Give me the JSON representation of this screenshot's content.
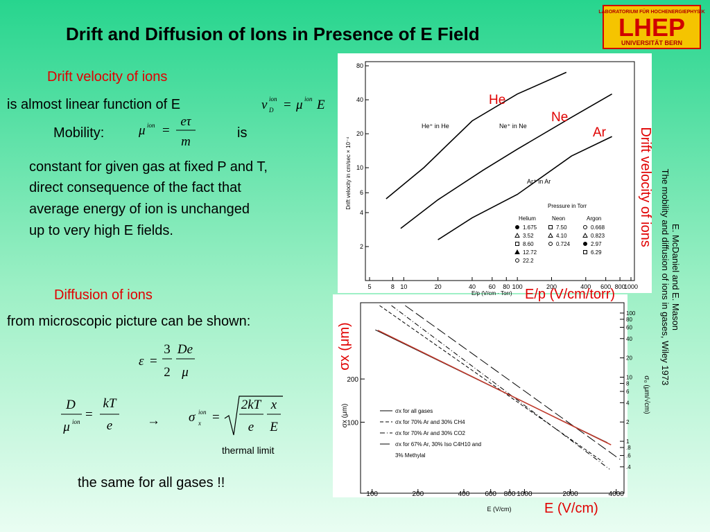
{
  "slide": {
    "title": "Drift and Diffusion of Ions in Presence of E Field",
    "logo": {
      "top": "LABORATORIUM FÜR HOCHENERGIEPHYSIK",
      "main": "LHEP",
      "bottom": "UNIVERSITÄT BERN"
    },
    "drift_heading": "Drift velocity of ions",
    "drift_text": "is almost linear function of E",
    "mobility_label": "Mobility:",
    "is": "is",
    "paragraph": [
      "constant for given gas at fixed P and T,",
      "direct consequence of the fact that",
      "average energy of ion is unchanged",
      "up to very high E fields."
    ],
    "diffusion_heading": "Diffusion of ions",
    "diffusion_text": "from microscopic picture can be shown:",
    "thermal": "thermal limit",
    "same": "the same for all gases !!",
    "vertical_label": "Drift velocity of ions",
    "citation": [
      "E. McDaniel and E. Mason",
      "The mobility and diffusion of ions in gases, Wiley 1973"
    ],
    "ep_label": "E/p (V/cm/torr)",
    "e_label": "E (V/cm)",
    "sigma_label": "σx (μm)"
  },
  "formulas": {
    "drift": [
      "v",
      "ion",
      "D",
      "=",
      "μ",
      "ion",
      "E"
    ],
    "mobility": [
      "μ",
      "ion",
      "=",
      "eτ",
      "m"
    ],
    "energy": [
      "ε",
      "=",
      "3",
      "2",
      "De",
      "μ"
    ],
    "ratio": [
      "D",
      "μ",
      "ion",
      "=",
      "kT",
      "e"
    ],
    "arrow": "→",
    "sigma": [
      "σ",
      "ion",
      "x",
      "=",
      "2kT",
      "e",
      "x",
      "E"
    ]
  },
  "chart_data": [
    {
      "type": "line",
      "xlabel": "E/p (V/cm · Torr)",
      "ylabel": "Drift velocity in cm/sec × 10⁻⁴",
      "log_x": true,
      "log_y": true,
      "xlim": [
        5,
        1000
      ],
      "ylim": [
        1,
        80
      ],
      "xticks": [
        5,
        8,
        10,
        20,
        40,
        60,
        80,
        100,
        200,
        400,
        600,
        800,
        1000
      ],
      "yticks": [
        2,
        4,
        6,
        10,
        20,
        40,
        80
      ],
      "series": [
        {
          "name": "He",
          "color": "#000000",
          "x": [
            7,
            15,
            40,
            100,
            270
          ],
          "values": [
            5.3,
            10,
            26,
            45,
            70
          ]
        },
        {
          "name": "Ne",
          "color": "#000000",
          "x": [
            9.4,
            20,
            50,
            100,
            300,
            680
          ],
          "values": [
            2.9,
            5.2,
            9.5,
            14.6,
            28,
            45
          ]
        },
        {
          "name": "Ar",
          "color": "#000000",
          "x": [
            20,
            40,
            100,
            300,
            680
          ],
          "values": [
            2.3,
            3.6,
            5.8,
            12.7,
            18.9
          ]
        }
      ],
      "name_color": "#e00000",
      "annotations": [
        "He⁺ in He",
        "Ne⁺ in Ne",
        "Ar⁺ in Ar"
      ],
      "pressure_table": {
        "title": "Pressure in Torr",
        "columns": [
          {
            "name": "Helium",
            "entries": [
              {
                "value": "1.675",
                "marker": "filled-circle"
              },
              {
                "value": "3.52",
                "marker": "triangle"
              },
              {
                "value": "8.60",
                "marker": "square"
              },
              {
                "value": "12.72",
                "marker": "filled-triangle"
              },
              {
                "value": "22.2",
                "marker": "circle"
              }
            ]
          },
          {
            "name": "Neon",
            "entries": [
              {
                "value": "7.50",
                "marker": "square"
              },
              {
                "value": "4.10",
                "marker": "triangle"
              },
              {
                "value": "0.724",
                "marker": "circle"
              }
            ]
          },
          {
            "name": "Argon",
            "entries": [
              {
                "value": "0.668",
                "marker": "circle"
              },
              {
                "value": "0.823",
                "marker": "triangle"
              },
              {
                "value": "2.97",
                "marker": "filled-circle"
              },
              {
                "value": "6.29",
                "marker": "square"
              }
            ]
          }
        ]
      }
    },
    {
      "type": "line",
      "xlabel": "E (V/cm)",
      "ylabel": "σx (μm)",
      "y2label": "σ₀ (μm/√cm)",
      "log_x": true,
      "log_y": true,
      "xlim": [
        84,
        4500
      ],
      "ylim": [
        32,
        680
      ],
      "y2lim": [
        0.155,
        145
      ],
      "xticks": [
        100,
        200,
        400,
        600,
        800,
        1000,
        2000,
        4000
      ],
      "yticks": [
        100,
        200
      ],
      "y2ticks": [
        100,
        80,
        60,
        40,
        20,
        10,
        8,
        6,
        4,
        2,
        1,
        {
          "value": 0.8,
          "label": ".8"
        },
        {
          "value": 0.6,
          "label": ".6"
        },
        {
          "value": 0.4,
          "label": ".4"
        }
      ],
      "series": [
        {
          "name": "σx for all gases",
          "color": "#000000",
          "dash": "solid",
          "x": [
            105,
            3500
          ],
          "values": [
            440,
            72
          ]
        },
        {
          "name": "σx for 70% Ar and 30% CH4",
          "color": "#000000",
          "dash": "dashed",
          "x": [
            112,
            3270
          ],
          "values": [
            650,
            53
          ]
        },
        {
          "name": "σx for 70% Ar and 30% CO2",
          "color": "#000000",
          "dash": "dashdot",
          "x": [
            134,
            3620
          ],
          "values": [
            650,
            47
          ]
        },
        {
          "name": "σx for 67% Ar, 30% Iso C4H10 and",
          "color": "#000000",
          "dash": "longdash",
          "x": [
            165,
            4240
          ],
          "values": [
            650,
            55
          ]
        }
      ],
      "legend_note": "3% Methylal",
      "overlay": {
        "color": "#c0392b",
        "x": [
          109,
          3700
        ],
        "values": [
          437,
          69.5
        ]
      }
    }
  ]
}
